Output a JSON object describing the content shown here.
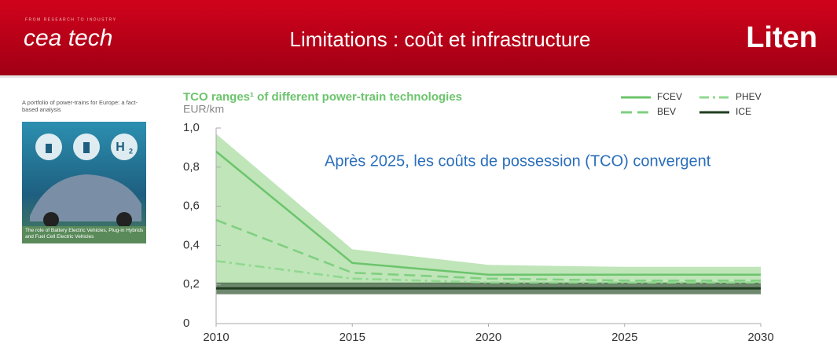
{
  "header": {
    "logo_tagline": "FROM RESEARCH TO INDUSTRY",
    "logo": "cea tech",
    "title": "Limitations : coût et infrastructure",
    "right_logo": "Liten"
  },
  "cover": {
    "title": "A portfolio of power-trains for Europe: a fact-based analysis",
    "icon": "H",
    "icon_sub": "2",
    "caption": "The role of Battery Electric Vehicles, Plug-in Hybrids and Fuel Cell Electric Vehicles"
  },
  "chart_data": {
    "type": "line",
    "title": "TCO ranges¹ of different power-train technologies",
    "y_label": "EUR/km",
    "annotation": "Après 2025, les coûts de possession (TCO) convergent",
    "x": [
      2010,
      2015,
      2020,
      2025,
      2030
    ],
    "series": [
      {
        "name": "FCEV",
        "color": "#6cc46c",
        "dash": "solid",
        "values": [
          0.88,
          0.31,
          0.25,
          0.25,
          0.25
        ],
        "range_high": [
          0.97,
          0.38,
          0.3,
          0.29,
          0.29
        ],
        "range_low": [
          0.2,
          0.2,
          0.2,
          0.2,
          0.2
        ],
        "range_color": "#a9dca2"
      },
      {
        "name": "BEV",
        "color": "#7fcf7f",
        "dash": "dashed",
        "values": [
          0.53,
          0.26,
          0.23,
          0.22,
          0.22
        ]
      },
      {
        "name": "PHEV",
        "color": "#8fd88f",
        "dash": "dashdot",
        "values": [
          0.32,
          0.23,
          0.21,
          0.21,
          0.21
        ]
      },
      {
        "name": "ICE",
        "color": "#1f3d1f",
        "dash": "solid",
        "values": [
          0.18,
          0.18,
          0.18,
          0.18,
          0.18
        ],
        "range_high": [
          0.21,
          0.21,
          0.21,
          0.21,
          0.21
        ],
        "range_low": [
          0.15,
          0.15,
          0.15,
          0.15,
          0.15
        ],
        "range_color": "#3f5f3f"
      }
    ],
    "xlim": [
      2010,
      2030
    ],
    "xticks": [
      2010,
      2015,
      2020,
      2025,
      2030
    ],
    "ylim": [
      0,
      1
    ],
    "yticks": [
      0,
      {
        "value": 0.2,
        "label": "0,2"
      },
      {
        "value": 0.4,
        "label": "0,4"
      },
      {
        "value": 0.6,
        "label": "0,6"
      },
      {
        "value": 0.8,
        "label": "0,8"
      },
      {
        "value": 1,
        "label": "1,0"
      }
    ]
  }
}
